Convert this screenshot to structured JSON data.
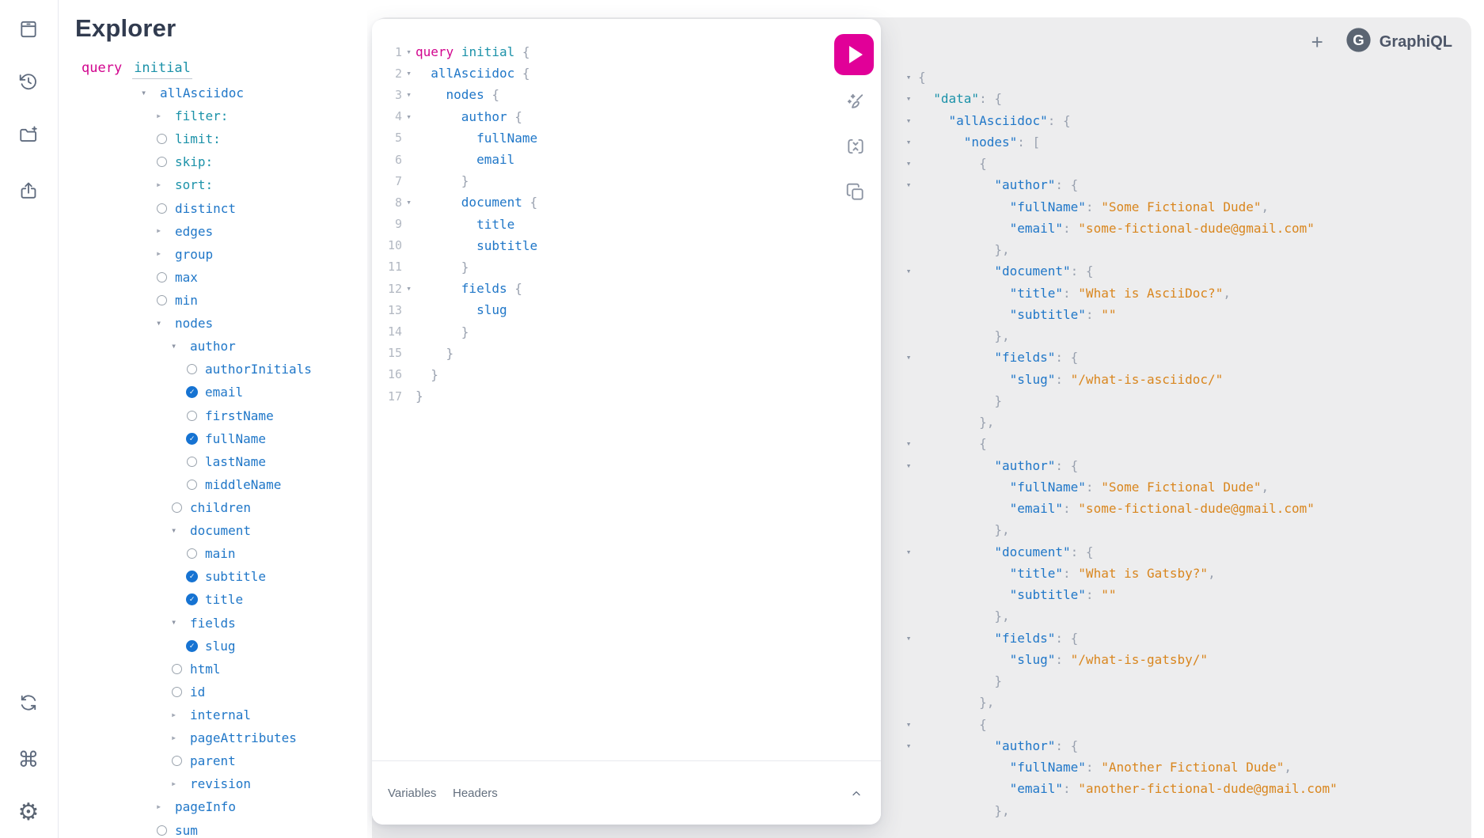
{
  "header": {
    "plus_label": "+",
    "brand": "GraphiQL",
    "brand_logo": "gatsby-monogram"
  },
  "colors": {
    "accent_pink": "#e10098",
    "keyword_pink": "#d2058e",
    "field_blue": "#2077c8",
    "arg_teal": "#1c92a9",
    "string_orange": "#d9861e",
    "punctuation_gray": "#9aa2b0",
    "panel_gray": "#ededee",
    "icon_slate": "#5f6b7e",
    "title_navy": "#313b4f",
    "checked_blue": "#1673d2"
  },
  "sidebar": {
    "icons": [
      {
        "name": "docs-icon"
      },
      {
        "name": "history-icon"
      },
      {
        "name": "open-workspace-icon"
      },
      {
        "name": "export-icon"
      },
      {
        "name": "refetch-icon"
      },
      {
        "name": "shortcut-keys-icon"
      },
      {
        "name": "settings-icon"
      }
    ],
    "shortcut_glyph": "⌘",
    "settings_glyph": "⚙"
  },
  "explorer": {
    "title": "Explorer",
    "query_keyword": "query",
    "query_name": "initial",
    "tree": [
      {
        "label": "allAsciidoc",
        "kind": "expanded",
        "color": "blue",
        "indent": 0
      },
      {
        "label": "filter:",
        "kind": "collapsed",
        "color": "teal",
        "indent": 1
      },
      {
        "label": "limit:",
        "kind": "radio",
        "color": "teal",
        "indent": 1
      },
      {
        "label": "skip:",
        "kind": "radio",
        "color": "teal",
        "indent": 1
      },
      {
        "label": "sort:",
        "kind": "collapsed",
        "color": "teal",
        "indent": 1
      },
      {
        "label": "distinct",
        "kind": "radio",
        "color": "blue",
        "indent": 1
      },
      {
        "label": "edges",
        "kind": "collapsed",
        "color": "blue",
        "indent": 1
      },
      {
        "label": "group",
        "kind": "collapsed",
        "color": "blue",
        "indent": 1
      },
      {
        "label": "max",
        "kind": "radio",
        "color": "blue",
        "indent": 1
      },
      {
        "label": "min",
        "kind": "radio",
        "color": "blue",
        "indent": 1
      },
      {
        "label": "nodes",
        "kind": "expanded",
        "color": "blue",
        "indent": 1
      },
      {
        "label": "author",
        "kind": "expanded",
        "color": "blue",
        "indent": 2
      },
      {
        "label": "authorInitials",
        "kind": "radio",
        "color": "blue",
        "indent": 3
      },
      {
        "label": "email",
        "kind": "checked",
        "color": "blue",
        "indent": 3
      },
      {
        "label": "firstName",
        "kind": "radio",
        "color": "blue",
        "indent": 3
      },
      {
        "label": "fullName",
        "kind": "checked",
        "color": "blue",
        "indent": 3
      },
      {
        "label": "lastName",
        "kind": "radio",
        "color": "blue",
        "indent": 3
      },
      {
        "label": "middleName",
        "kind": "radio",
        "color": "blue",
        "indent": 3
      },
      {
        "label": "children",
        "kind": "radio",
        "color": "blue",
        "indent": 2
      },
      {
        "label": "document",
        "kind": "expanded",
        "color": "blue",
        "indent": 2
      },
      {
        "label": "main",
        "kind": "radio",
        "color": "blue",
        "indent": 3
      },
      {
        "label": "subtitle",
        "kind": "checked",
        "color": "blue",
        "indent": 3
      },
      {
        "label": "title",
        "kind": "checked",
        "color": "blue",
        "indent": 3
      },
      {
        "label": "fields",
        "kind": "expanded",
        "color": "blue",
        "indent": 2
      },
      {
        "label": "slug",
        "kind": "checked",
        "color": "blue",
        "indent": 3
      },
      {
        "label": "html",
        "kind": "radio",
        "color": "blue",
        "indent": 2
      },
      {
        "label": "id",
        "kind": "radio",
        "color": "blue",
        "indent": 2
      },
      {
        "label": "internal",
        "kind": "collapsed",
        "color": "blue",
        "indent": 2
      },
      {
        "label": "pageAttributes",
        "kind": "collapsed",
        "color": "blue",
        "indent": 2
      },
      {
        "label": "parent",
        "kind": "radio",
        "color": "blue",
        "indent": 2
      },
      {
        "label": "revision",
        "kind": "collapsed",
        "color": "blue",
        "indent": 2
      },
      {
        "label": "pageInfo",
        "kind": "collapsed",
        "color": "blue",
        "indent": 1
      },
      {
        "label": "sum",
        "kind": "radio",
        "color": "blue",
        "indent": 1
      }
    ]
  },
  "editor": {
    "lines": [
      {
        "n": "1",
        "fold": true,
        "ind": 0,
        "tokens": [
          [
            "kw",
            "query"
          ],
          [
            "pn",
            " "
          ],
          [
            "op",
            "initial"
          ],
          [
            "pn",
            " {"
          ]
        ]
      },
      {
        "n": "2",
        "fold": true,
        "ind": 1,
        "tokens": [
          [
            "fld",
            "allAsciidoc"
          ],
          [
            "pn",
            " {"
          ]
        ]
      },
      {
        "n": "3",
        "fold": true,
        "ind": 2,
        "tokens": [
          [
            "fld",
            "nodes"
          ],
          [
            "pn",
            " {"
          ]
        ]
      },
      {
        "n": "4",
        "fold": true,
        "ind": 3,
        "tokens": [
          [
            "fld",
            "author"
          ],
          [
            "pn",
            " {"
          ]
        ]
      },
      {
        "n": "5",
        "fold": false,
        "ind": 4,
        "tokens": [
          [
            "fld",
            "fullName"
          ]
        ]
      },
      {
        "n": "6",
        "fold": false,
        "ind": 4,
        "tokens": [
          [
            "fld",
            "email"
          ]
        ]
      },
      {
        "n": "7",
        "fold": false,
        "ind": 3,
        "tokens": [
          [
            "pn",
            "}"
          ]
        ]
      },
      {
        "n": "8",
        "fold": true,
        "ind": 3,
        "tokens": [
          [
            "fld",
            "document"
          ],
          [
            "pn",
            " {"
          ]
        ]
      },
      {
        "n": "9",
        "fold": false,
        "ind": 4,
        "tokens": [
          [
            "fld",
            "title"
          ]
        ]
      },
      {
        "n": "10",
        "fold": false,
        "ind": 4,
        "tokens": [
          [
            "fld",
            "subtitle"
          ]
        ]
      },
      {
        "n": "11",
        "fold": false,
        "ind": 3,
        "tokens": [
          [
            "pn",
            "}"
          ]
        ]
      },
      {
        "n": "12",
        "fold": true,
        "ind": 3,
        "tokens": [
          [
            "fld",
            "fields"
          ],
          [
            "pn",
            " {"
          ]
        ]
      },
      {
        "n": "13",
        "fold": false,
        "ind": 4,
        "tokens": [
          [
            "fld",
            "slug"
          ]
        ]
      },
      {
        "n": "14",
        "fold": false,
        "ind": 3,
        "tokens": [
          [
            "pn",
            "}"
          ]
        ]
      },
      {
        "n": "15",
        "fold": false,
        "ind": 2,
        "tokens": [
          [
            "pn",
            "}"
          ]
        ]
      },
      {
        "n": "16",
        "fold": false,
        "ind": 1,
        "tokens": [
          [
            "pn",
            "}"
          ]
        ]
      },
      {
        "n": "17",
        "fold": false,
        "ind": 0,
        "tokens": [
          [
            "pn",
            "}"
          ]
        ]
      }
    ],
    "toolbar": {
      "execute_label": "execute-query",
      "tools": [
        "prettify",
        "merge-fragments",
        "copy-query"
      ]
    },
    "footer": {
      "tabs": [
        "Variables",
        "Headers"
      ]
    }
  },
  "response": {
    "lines": [
      {
        "depth": 0,
        "fold": true,
        "tokens": [
          [
            "pn",
            "{"
          ]
        ]
      },
      {
        "depth": 1,
        "fold": true,
        "tokens": [
          [
            "kt",
            "\"data\""
          ],
          [
            "pn",
            ": {"
          ]
        ]
      },
      {
        "depth": 2,
        "fold": true,
        "tokens": [
          [
            "k",
            "\"allAsciidoc\""
          ],
          [
            "pn",
            ": {"
          ]
        ]
      },
      {
        "depth": 3,
        "fold": true,
        "tokens": [
          [
            "k",
            "\"nodes\""
          ],
          [
            "pn",
            ": ["
          ]
        ]
      },
      {
        "depth": 4,
        "fold": true,
        "tokens": [
          [
            "pn",
            "{"
          ]
        ]
      },
      {
        "depth": 5,
        "fold": true,
        "tokens": [
          [
            "k",
            "\"author\""
          ],
          [
            "pn",
            ": {"
          ]
        ]
      },
      {
        "depth": 6,
        "fold": false,
        "tokens": [
          [
            "k",
            "\"fullName\""
          ],
          [
            "pn",
            ": "
          ],
          [
            "s",
            "\"Some Fictional Dude\""
          ],
          [
            "pn",
            ","
          ]
        ]
      },
      {
        "depth": 6,
        "fold": false,
        "tokens": [
          [
            "k",
            "\"email\""
          ],
          [
            "pn",
            ": "
          ],
          [
            "s",
            "\"some-fictional-dude@gmail.com\""
          ]
        ]
      },
      {
        "depth": 5,
        "fold": false,
        "tokens": [
          [
            "pn",
            "},"
          ]
        ]
      },
      {
        "depth": 5,
        "fold": true,
        "tokens": [
          [
            "k",
            "\"document\""
          ],
          [
            "pn",
            ": {"
          ]
        ]
      },
      {
        "depth": 6,
        "fold": false,
        "tokens": [
          [
            "k",
            "\"title\""
          ],
          [
            "pn",
            ": "
          ],
          [
            "s",
            "\"What is AsciiDoc?\""
          ],
          [
            "pn",
            ","
          ]
        ]
      },
      {
        "depth": 6,
        "fold": false,
        "tokens": [
          [
            "k",
            "\"subtitle\""
          ],
          [
            "pn",
            ": "
          ],
          [
            "s",
            "\"\""
          ]
        ]
      },
      {
        "depth": 5,
        "fold": false,
        "tokens": [
          [
            "pn",
            "},"
          ]
        ]
      },
      {
        "depth": 5,
        "fold": true,
        "tokens": [
          [
            "k",
            "\"fields\""
          ],
          [
            "pn",
            ": {"
          ]
        ]
      },
      {
        "depth": 6,
        "fold": false,
        "tokens": [
          [
            "k",
            "\"slug\""
          ],
          [
            "pn",
            ": "
          ],
          [
            "s",
            "\"/what-is-asciidoc/\""
          ]
        ]
      },
      {
        "depth": 5,
        "fold": false,
        "tokens": [
          [
            "pn",
            "}"
          ]
        ]
      },
      {
        "depth": 4,
        "fold": false,
        "tokens": [
          [
            "pn",
            "},"
          ]
        ]
      },
      {
        "depth": 4,
        "fold": true,
        "tokens": [
          [
            "pn",
            "{"
          ]
        ]
      },
      {
        "depth": 5,
        "fold": true,
        "tokens": [
          [
            "k",
            "\"author\""
          ],
          [
            "pn",
            ": {"
          ]
        ]
      },
      {
        "depth": 6,
        "fold": false,
        "tokens": [
          [
            "k",
            "\"fullName\""
          ],
          [
            "pn",
            ": "
          ],
          [
            "s",
            "\"Some Fictional Dude\""
          ],
          [
            "pn",
            ","
          ]
        ]
      },
      {
        "depth": 6,
        "fold": false,
        "tokens": [
          [
            "k",
            "\"email\""
          ],
          [
            "pn",
            ": "
          ],
          [
            "s",
            "\"some-fictional-dude@gmail.com\""
          ]
        ]
      },
      {
        "depth": 5,
        "fold": false,
        "tokens": [
          [
            "pn",
            "},"
          ]
        ]
      },
      {
        "depth": 5,
        "fold": true,
        "tokens": [
          [
            "k",
            "\"document\""
          ],
          [
            "pn",
            ": {"
          ]
        ]
      },
      {
        "depth": 6,
        "fold": false,
        "tokens": [
          [
            "k",
            "\"title\""
          ],
          [
            "pn",
            ": "
          ],
          [
            "s",
            "\"What is Gatsby?\""
          ],
          [
            "pn",
            ","
          ]
        ]
      },
      {
        "depth": 6,
        "fold": false,
        "tokens": [
          [
            "k",
            "\"subtitle\""
          ],
          [
            "pn",
            ": "
          ],
          [
            "s",
            "\"\""
          ]
        ]
      },
      {
        "depth": 5,
        "fold": false,
        "tokens": [
          [
            "pn",
            "},"
          ]
        ]
      },
      {
        "depth": 5,
        "fold": true,
        "tokens": [
          [
            "k",
            "\"fields\""
          ],
          [
            "pn",
            ": {"
          ]
        ]
      },
      {
        "depth": 6,
        "fold": false,
        "tokens": [
          [
            "k",
            "\"slug\""
          ],
          [
            "pn",
            ": "
          ],
          [
            "s",
            "\"/what-is-gatsby/\""
          ]
        ]
      },
      {
        "depth": 5,
        "fold": false,
        "tokens": [
          [
            "pn",
            "}"
          ]
        ]
      },
      {
        "depth": 4,
        "fold": false,
        "tokens": [
          [
            "pn",
            "},"
          ]
        ]
      },
      {
        "depth": 4,
        "fold": true,
        "tokens": [
          [
            "pn",
            "{"
          ]
        ]
      },
      {
        "depth": 5,
        "fold": true,
        "tokens": [
          [
            "k",
            "\"author\""
          ],
          [
            "pn",
            ": {"
          ]
        ]
      },
      {
        "depth": 6,
        "fold": false,
        "tokens": [
          [
            "k",
            "\"fullName\""
          ],
          [
            "pn",
            ": "
          ],
          [
            "s",
            "\"Another Fictional Dude\""
          ],
          [
            "pn",
            ","
          ]
        ]
      },
      {
        "depth": 6,
        "fold": false,
        "tokens": [
          [
            "k",
            "\"email\""
          ],
          [
            "pn",
            ": "
          ],
          [
            "s",
            "\"another-fictional-dude@gmail.com\""
          ]
        ]
      },
      {
        "depth": 5,
        "fold": false,
        "tokens": [
          [
            "pn",
            "},"
          ]
        ]
      }
    ]
  }
}
